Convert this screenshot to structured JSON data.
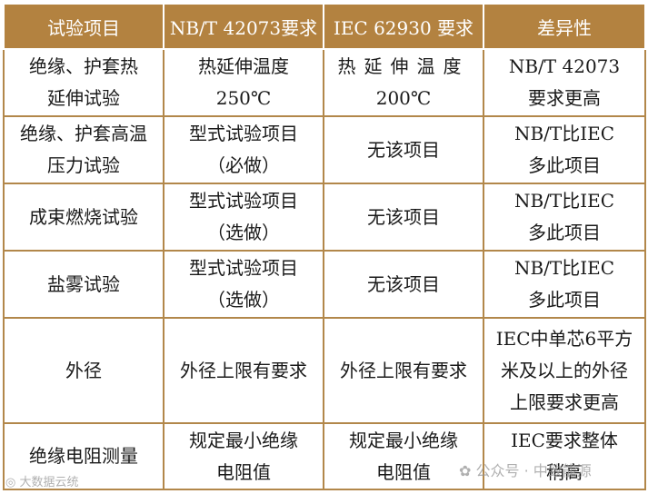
{
  "header_color": "#b38240",
  "border_color": "#b2874a",
  "headers": [
    "试验项目",
    "NB/T 42073要求",
    "IEC 62930 要求",
    "差异性"
  ],
  "rows": [
    {
      "item": [
        "绝缘、护套热",
        "延伸试验"
      ],
      "nbt": [
        "热延伸温度",
        "250℃"
      ],
      "iec": [
        "热延伸温度",
        "200℃"
      ],
      "diff": [
        "NB/T 42073",
        "要求更高"
      ]
    },
    {
      "item": [
        "绝缘、护套高温",
        "压力试验"
      ],
      "nbt": [
        "型式试验项目",
        "（必做）"
      ],
      "iec": [
        "无该项目"
      ],
      "diff": [
        "NB/T比IEC",
        "多此项目"
      ]
    },
    {
      "item": [
        "成束燃烧试验"
      ],
      "nbt": [
        "型式试验项目",
        "（选做）"
      ],
      "iec": [
        "无该项目"
      ],
      "diff": [
        "NB/T比IEC",
        "多此项目"
      ]
    },
    {
      "item": [
        "盐雾试验"
      ],
      "nbt": [
        "型式试验项目",
        "（选做）"
      ],
      "iec": [
        "无该项目"
      ],
      "diff": [
        "NB/T比IEC",
        "多此项目"
      ]
    },
    {
      "item": [
        "外径"
      ],
      "nbt": [
        "外径上限有要求"
      ],
      "iec": [
        "外径上限有要求"
      ],
      "diff": [
        "IEC中单芯6平方",
        "米及以上的外径",
        "上限要求更高"
      ]
    },
    {
      "item": [
        "绝缘电阻测量"
      ],
      "nbt": [
        "规定最小绝缘",
        "电阻值"
      ],
      "iec": [
        "规定最小绝缘",
        "电阻值"
      ],
      "diff": [
        "IEC要求整体",
        "稍高"
      ]
    }
  ],
  "watermarks": {
    "left": "大数据云统",
    "right": "公众号 · 中致能源"
  }
}
